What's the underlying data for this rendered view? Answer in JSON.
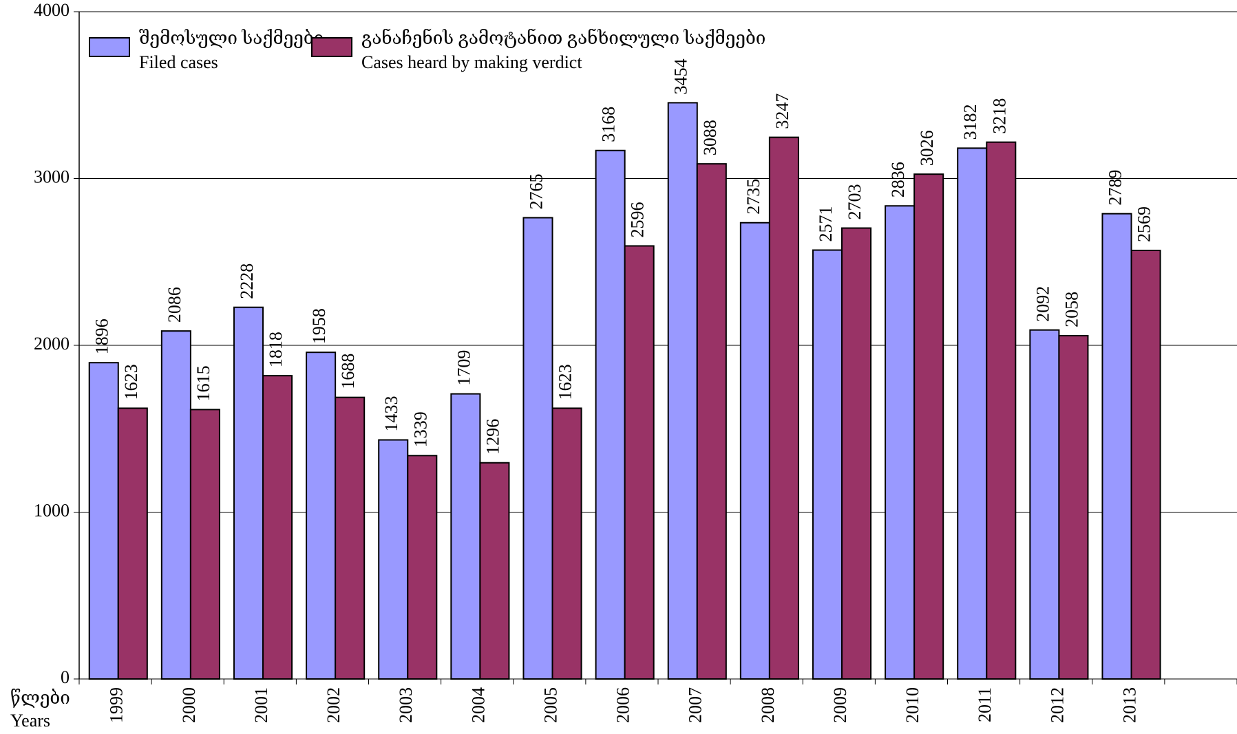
{
  "chart_data": {
    "type": "bar",
    "categories": [
      "1999",
      "2000",
      "2001",
      "2002",
      "2003",
      "2004",
      "2005",
      "2006",
      "2007",
      "2008",
      "2009",
      "2010",
      "2011",
      "2012",
      "2013",
      null
    ],
    "series": [
      {
        "name": [
          "შემოსული საქმეები",
          "Filed cases"
        ],
        "color": "#9999ff",
        "values": [
          1896,
          2086,
          2228,
          1958,
          1433,
          1709,
          2765,
          3168,
          3454,
          2735,
          2571,
          2836,
          3182,
          2092,
          2789,
          null
        ]
      },
      {
        "name": [
          "განაჩენის გამოტანით განხილული საქმეები",
          "Cases heard by making verdict"
        ],
        "color": "#993366",
        "values": [
          1623,
          1615,
          1818,
          1688,
          1339,
          1296,
          1623,
          2596,
          3088,
          3247,
          2703,
          3026,
          3218,
          2058,
          2569,
          null
        ]
      }
    ],
    "x_label": [
      "წლები",
      "Years"
    ],
    "ylim": [
      0,
      4000
    ],
    "yticks": [
      0,
      1000,
      2000,
      3000,
      4000
    ],
    "grid": true
  }
}
